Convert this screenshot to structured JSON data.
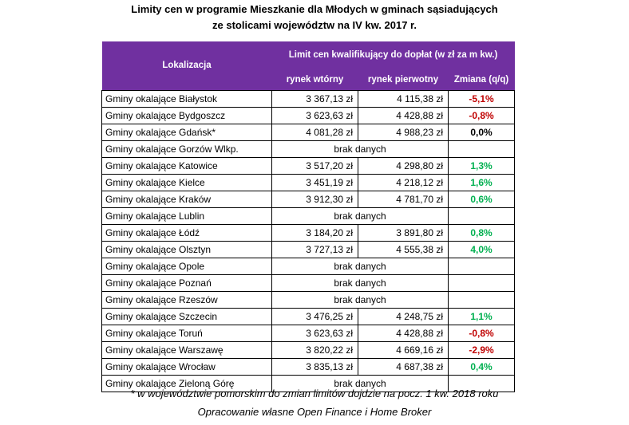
{
  "title": {
    "line1": "Limity cen w programie Mieszkanie dla Młodych w gminach sąsiadujących",
    "line2": "ze stolicami województw na IV kw. 2017 r."
  },
  "table": {
    "header": {
      "location": "Lokalizacja",
      "group": "Limit cen kwalifikujący do dopłat (w zł za m kw.)",
      "secondary": "rynek wtórny",
      "primary": "rynek pierwotny",
      "change": "Zmiana (q/q)"
    },
    "colors": {
      "header_bg": "#7030a0",
      "header_text": "#ffffff",
      "negative": "#c00000",
      "positive": "#00b050"
    },
    "rows": [
      {
        "loc": "Gminy okalające Białystok",
        "sec": "3 367,13 zł",
        "pri": "4 115,38 zł",
        "chg": "-5,1%"
      },
      {
        "loc": "Gminy okalające Bydgoszcz",
        "sec": "3 623,63 zł",
        "pri": "4 428,88 zł",
        "chg": "-0,8%"
      },
      {
        "loc": "Gminy okalające Gdańsk*",
        "sec": "4 081,28 zł",
        "pri": "4 988,23 zł",
        "chg": "0,0%"
      },
      {
        "loc": "Gminy okalające Gorzów Wlkp.",
        "nodata": "brak danych"
      },
      {
        "loc": "Gminy okalające Katowice",
        "sec": "3 517,20 zł",
        "pri": "4 298,80 zł",
        "chg": "1,3%"
      },
      {
        "loc": "Gminy okalające Kielce",
        "sec": "3 451,19 zł",
        "pri": "4 218,12 zł",
        "chg": "1,6%"
      },
      {
        "loc": "Gminy okalające Kraków",
        "sec": "3 912,30 zł",
        "pri": "4 781,70 zł",
        "chg": "0,6%"
      },
      {
        "loc": "Gminy okalające Lublin",
        "nodata": "brak danych"
      },
      {
        "loc": "Gminy okalające Łódź",
        "sec": "3 184,20 zł",
        "pri": "3 891,80 zł",
        "chg": "0,8%"
      },
      {
        "loc": "Gminy okalające Olsztyn",
        "sec": "3 727,13 zł",
        "pri": "4 555,38 zł",
        "chg": "4,0%"
      },
      {
        "loc": "Gminy okalające Opole",
        "nodata": "brak danych"
      },
      {
        "loc": "Gminy okalające Poznań",
        "nodata": "brak danych"
      },
      {
        "loc": "Gminy okalające Rzeszów",
        "nodata": "brak danych"
      },
      {
        "loc": "Gminy okalające Szczecin",
        "sec": "3 476,25 zł",
        "pri": "4 248,75 zł",
        "chg": "1,1%"
      },
      {
        "loc": "Gminy okalające Toruń",
        "sec": "3 623,63 zł",
        "pri": "4 428,88 zł",
        "chg": "-0,8%"
      },
      {
        "loc": "Gminy okalające Warszawę",
        "sec": "3 820,22 zł",
        "pri": "4 669,16 zł",
        "chg": "-2,9%"
      },
      {
        "loc": "Gminy okalające Wrocław",
        "sec": "3 835,13 zł",
        "pri": "4 687,38 zł",
        "chg": "0,4%"
      },
      {
        "loc": "Gminy okalające Zieloną Górę",
        "nodata": "brak danych"
      }
    ]
  },
  "notes": {
    "footnote": "* w województwie pomorskim do zmian limitów dojdzie na pocz. 1 kw. 2018 roku",
    "source": "Opracowanie własne Open Finance i Home Broker"
  }
}
